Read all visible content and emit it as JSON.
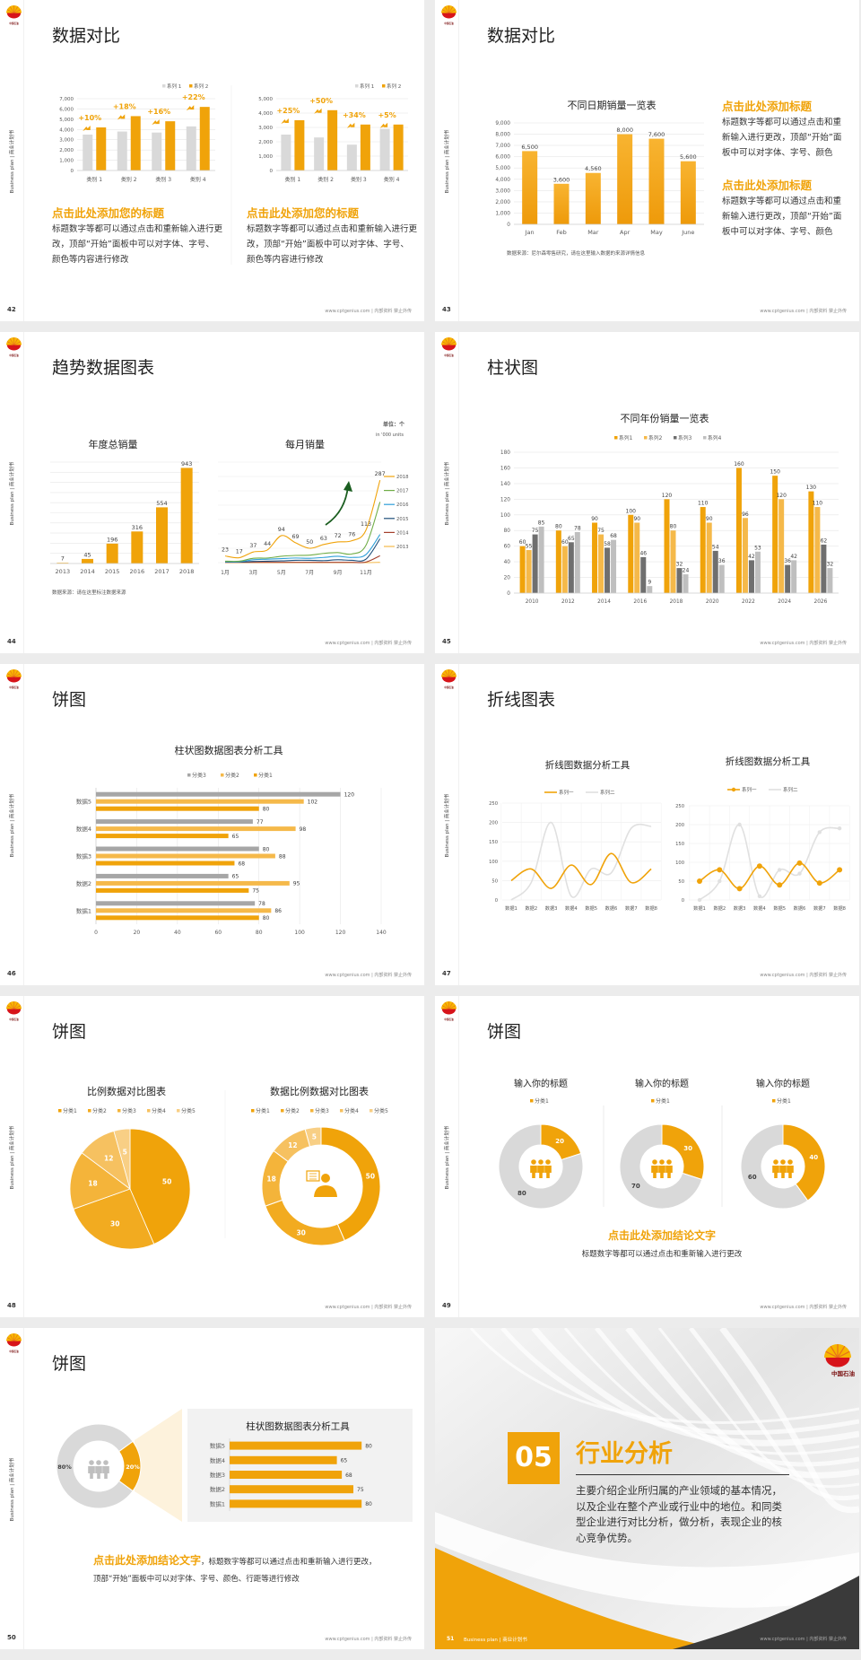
{
  "common": {
    "side_label": "Business plan | 商业计划书",
    "footer": "www.cptgenius.com | 内部资料 禁止外传",
    "logo_text": "中国石油"
  },
  "colors": {
    "accent": "#f0a30a",
    "accent_light": "#f5b94a",
    "gray": "#d9d9d9",
    "dark_gray": "#6f6f6f",
    "text": "#333333"
  },
  "slides": [
    {
      "page": "42",
      "title": "数据对比",
      "blocks": [
        {
          "heading": "点击此处添加您的标题",
          "body": "标题数字等都可以通过点击和重新输入进行更改，顶部“开始”面板中可以对字体、字号、颜色等内容进行修改"
        },
        {
          "heading": "点击此处添加您的标题",
          "body": "标题数字等都可以通过点击和重新输入进行更改，顶部“开始”面板中可以对字体、字号、颜色等内容进行修改"
        }
      ]
    },
    {
      "page": "43",
      "title": "数据对比",
      "source": "数据来源：尼尔森零售研究，请在这里输入数据的来源详情信息",
      "blocks": [
        {
          "heading": "点击此处添加标题",
          "body": "标题数字等都可以通过点击和重新输入进行更改，顶部“开始”面板中可以对字体、字号、颜色"
        },
        {
          "heading": "点击此处添加标题",
          "body": "标题数字等都可以通过点击和重新输入进行更改，顶部“开始”面板中可以对字体、字号、颜色"
        }
      ]
    },
    {
      "page": "44",
      "title": "趋势数据图表",
      "source": "数据来源：请在这里标注数据来源",
      "unit": "单位：个",
      "unit_en": "in '000 units"
    },
    {
      "page": "45",
      "title": "柱状图"
    },
    {
      "page": "46",
      "title": "饼图"
    },
    {
      "page": "47",
      "title": "折线图表"
    },
    {
      "page": "48",
      "title": "饼图"
    },
    {
      "page": "49",
      "title": "饼图",
      "conclusion": "点击此处添加结论文字",
      "body": "标题数字等都可以通过点击和重新输入进行更改"
    },
    {
      "page": "50",
      "title": "饼图",
      "conclusion": "点击此处添加结论文字",
      "body": "，标题数字等都可以通过点击和重新输入进行更改，顶部“开始”面板中可以对字体、字号、颜色、行距等进行修改"
    },
    {
      "page": "51",
      "number": "05",
      "title": "行业分析",
      "body": "主要介绍企业所归属的产业领域的基本情况，以及企业在整个产业或行业中的地位。和同类型企业进行对比分析，做分析，表现企业的核心竞争优势。",
      "footer_label": "Business plan | 商业计划书"
    }
  ],
  "chart_data": [
    {
      "type": "bar",
      "categories": [
        "类别 1",
        "类别 2",
        "类别 3",
        "类别 4"
      ],
      "series": [
        {
          "name": "系列 1",
          "values": [
            3500,
            3800,
            3700,
            4300
          ],
          "color": "#d9d9d9"
        },
        {
          "name": "系列 2",
          "values": [
            4200,
            5300,
            4800,
            6200
          ],
          "color": "#f0a30a"
        }
      ],
      "ylim": [
        0,
        7000
      ],
      "yticks": [
        "0",
        "1,000",
        "2,000",
        "3,000",
        "4,000",
        "5,000",
        "6,000",
        "7,000"
      ],
      "annotations": [
        "+10%",
        "+18%",
        "+16%",
        "+22%"
      ],
      "legend": "top-right"
    },
    {
      "type": "bar",
      "categories": [
        "类别 1",
        "类别 2",
        "类别 3",
        "类别 4"
      ],
      "series": [
        {
          "name": "系列 1",
          "values": [
            2500,
            2300,
            1800,
            2900
          ],
          "color": "#d9d9d9"
        },
        {
          "name": "系列 2",
          "values": [
            3500,
            4200,
            3200,
            3200
          ],
          "color": "#f0a30a"
        }
      ],
      "ylim": [
        0,
        5000
      ],
      "yticks": [
        "0",
        "1,000",
        "2,000",
        "3,000",
        "4,000",
        "5,000"
      ],
      "annotations": [
        "+25%",
        "+50%",
        "+34%",
        "+5%"
      ],
      "legend": "top-right"
    },
    {
      "type": "bar",
      "title": "不同日期销量一览表",
      "categories": [
        "Jan",
        "Feb",
        "Mar",
        "Apr",
        "May",
        "June"
      ],
      "values": [
        6500,
        3600,
        4560,
        8000,
        7600,
        5600
      ],
      "data_labels": [
        "6,500",
        "3,600",
        "4,560",
        "8,000",
        "7,600",
        "5,600"
      ],
      "color": "#f0a30a",
      "ylim": [
        0,
        9000
      ],
      "yticks": [
        "0",
        "1,000",
        "2,000",
        "3,000",
        "4,000",
        "5,000",
        "6,000",
        "7,000",
        "8,000",
        "9,000"
      ]
    },
    {
      "type": "bar",
      "title": "年度总销量",
      "categories": [
        "2013",
        "2014",
        "2015",
        "2016",
        "2017",
        "2018"
      ],
      "values": [
        7,
        45,
        196,
        316,
        554,
        943
      ],
      "color": "#f0a30a",
      "ylim": [
        0,
        1000
      ],
      "grid": true
    },
    {
      "type": "line",
      "title": "每月销量",
      "xticks": [
        "1月",
        "3月",
        "5月",
        "7月",
        "9月",
        "11月"
      ],
      "ylim": [
        0,
        350
      ],
      "series": [
        {
          "name": "2018",
          "values": [
            23,
            17,
            37,
            44,
            94,
            69,
            50,
            63,
            72,
            76,
            113,
            287
          ],
          "color": "#f0a30a",
          "labeled": true
        },
        {
          "name": "2017",
          "values": [
            5,
            5,
            15,
            16,
            22,
            25,
            26,
            32,
            35,
            30,
            60,
            211
          ],
          "color": "#70ad47"
        },
        {
          "name": "2016",
          "values": [
            3,
            3,
            10,
            12,
            14,
            16,
            15,
            18,
            22,
            18,
            28,
            98
          ],
          "color": "#2e9fd8"
        },
        {
          "name": "2015",
          "values": [
            2,
            2,
            4,
            5,
            6,
            8,
            8,
            7,
            10,
            8,
            12,
            83
          ],
          "color": "#1f4e79"
        },
        {
          "name": "2014",
          "values": [
            1,
            1,
            1,
            1,
            1,
            1,
            1,
            1,
            1,
            1,
            2,
            24
          ],
          "color": "#a5402d"
        },
        {
          "name": "2013",
          "values": [
            0,
            0,
            0,
            0,
            0,
            0,
            0,
            0,
            0,
            0,
            0,
            1
          ],
          "color": "#f5b94a"
        }
      ]
    },
    {
      "type": "bar",
      "title": "不同年份销量一览表",
      "categories": [
        "2010",
        "2012",
        "2014",
        "2016",
        "2018",
        "2020",
        "2022",
        "2024",
        "2026"
      ],
      "series": [
        {
          "name": "系列1",
          "values": [
            60,
            80,
            90,
            100,
            120,
            110,
            160,
            150,
            130
          ],
          "color": "#f0a30a"
        },
        {
          "name": "系列2",
          "values": [
            55,
            60,
            75,
            90,
            80,
            90,
            96,
            120,
            110
          ],
          "color": "#f5b94a"
        },
        {
          "name": "系列3",
          "values": [
            75,
            65,
            58,
            46,
            32,
            54,
            42,
            36,
            62
          ],
          "color": "#6f6f6f"
        },
        {
          "name": "系列4",
          "values": [
            85,
            78,
            68,
            9,
            24,
            36,
            53,
            42,
            32
          ],
          "color": "#bfbfbf"
        }
      ],
      "ylim": [
        0,
        180
      ],
      "yticks": [
        "0",
        "20",
        "40",
        "60",
        "80",
        "100",
        "120",
        "140",
        "160",
        "180"
      ],
      "legend": "top"
    },
    {
      "type": "bar",
      "orientation": "horizontal",
      "title": "柱状图数据图表分析工具",
      "categories": [
        "数据1",
        "数据2",
        "数据3",
        "数据4",
        "数据5"
      ],
      "series": [
        {
          "name": "分类1",
          "values": [
            80,
            75,
            68,
            65,
            80
          ],
          "color": "#f0a30a"
        },
        {
          "name": "分类2",
          "values": [
            86,
            95,
            88,
            98,
            102
          ],
          "color": "#f5b94a"
        },
        {
          "name": "分类3",
          "values": [
            78,
            65,
            80,
            77,
            120
          ],
          "color": "#a6a6a6"
        }
      ],
      "xlim": [
        0,
        140
      ],
      "xticks": [
        "0",
        "20",
        "40",
        "60",
        "80",
        "100",
        "120",
        "140"
      ],
      "legend": "top"
    },
    {
      "type": "line",
      "title": "折线图数据分析工具",
      "categories": [
        "数据1",
        "数据2",
        "数据3",
        "数据4",
        "数据5",
        "数据6",
        "数据7",
        "数据8"
      ],
      "series": [
        {
          "name": "系列一",
          "values": [
            50,
            80,
            30,
            90,
            40,
            120,
            45,
            80
          ],
          "color": "#f0a30a"
        },
        {
          "name": "系列二",
          "values": [
            0,
            45,
            200,
            10,
            80,
            70,
            185,
            190
          ],
          "color": "#e0e0e0"
        }
      ],
      "ylim": [
        0,
        250
      ],
      "yticks": [
        "0",
        "50",
        "100",
        "150",
        "200",
        "250"
      ],
      "smooth": true
    },
    {
      "type": "line",
      "title": "折线图数据分析工具",
      "categories": [
        "数据1",
        "数据2",
        "数据3",
        "数据4",
        "数据5",
        "数据6",
        "数据7",
        "数据8"
      ],
      "series": [
        {
          "name": "系列一",
          "values": [
            50,
            80,
            30,
            90,
            40,
            98,
            45,
            80
          ],
          "color": "#f0a30a"
        },
        {
          "name": "系列二",
          "values": [
            0,
            50,
            200,
            10,
            80,
            70,
            180,
            190
          ],
          "color": "#e0e0e0"
        }
      ],
      "ylim": [
        0,
        250
      ],
      "yticks": [
        "0",
        "50",
        "100",
        "150",
        "200",
        "250"
      ],
      "smooth": true,
      "markers": true
    },
    {
      "type": "pie",
      "title": "比例数据对比图表",
      "categories": [
        "分类1",
        "分类2",
        "分类3",
        "分类4",
        "分类5"
      ],
      "values": [
        50,
        30,
        18,
        12,
        5
      ],
      "colors": [
        "#f0a30a",
        "#f2ab20",
        "#f4b43a",
        "#f6c160",
        "#f8cf85"
      ]
    },
    {
      "type": "pie",
      "donut": true,
      "title": "数据比例数据对比图表",
      "categories": [
        "分类1",
        "分类2",
        "分类3",
        "分类4",
        "分类5"
      ],
      "values": [
        50,
        30,
        18,
        12,
        5
      ],
      "colors": [
        "#f0a30a",
        "#f2ab20",
        "#f4b43a",
        "#f6c160",
        "#f8cf85"
      ]
    },
    {
      "type": "pie",
      "donut": true,
      "title": "输入你的标题",
      "legend_label": "分类1",
      "values": [
        20,
        80
      ],
      "colors": [
        "#f0a30a",
        "#d9d9d9"
      ]
    },
    {
      "type": "pie",
      "donut": true,
      "title": "输入你的标题",
      "legend_label": "分类1",
      "values": [
        30,
        70
      ],
      "colors": [
        "#f0a30a",
        "#d9d9d9"
      ]
    },
    {
      "type": "pie",
      "donut": true,
      "title": "输入你的标题",
      "legend_label": "分类1",
      "values": [
        40,
        60
      ],
      "colors": [
        "#f0a30a",
        "#d9d9d9"
      ]
    },
    {
      "type": "pie",
      "donut": true,
      "values": [
        20,
        80
      ],
      "data_labels": [
        "20%",
        "80%"
      ],
      "colors": [
        "#f0a30a",
        "#d9d9d9"
      ]
    },
    {
      "type": "bar",
      "orientation": "horizontal",
      "title": "柱状图数据图表分析工具",
      "categories": [
        "数据1",
        "数据2",
        "数据3",
        "数据4",
        "数据5"
      ],
      "values": [
        80,
        75,
        68,
        65,
        80
      ],
      "color": "#f0a30a",
      "xlim": [
        0,
        100
      ]
    }
  ]
}
